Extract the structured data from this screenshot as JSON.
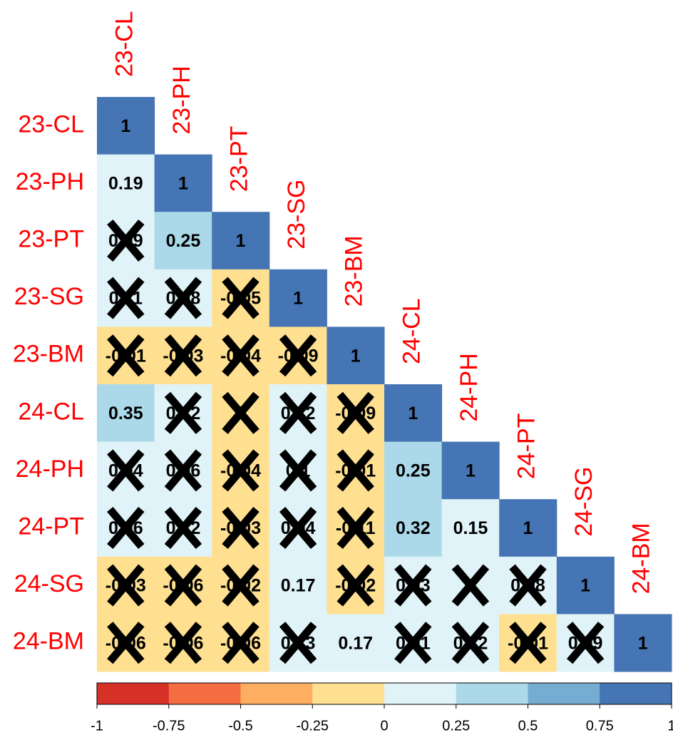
{
  "chart_data": {
    "type": "heatmap",
    "categories": [
      "23-CL",
      "23-PH",
      "23-PT",
      "23-SG",
      "23-BM",
      "24-CL",
      "24-PH",
      "24-PT",
      "24-SG",
      "24-BM"
    ],
    "values": [
      [
        1
      ],
      [
        0.19,
        1
      ],
      [
        0.09,
        0.25,
        1
      ],
      [
        0.11,
        0.08,
        -0.05,
        1
      ],
      [
        -0.01,
        -0.03,
        -0.04,
        -0.09,
        1
      ],
      [
        0.35,
        0.12,
        -0.004,
        0.12,
        -0.09,
        1
      ],
      [
        0.04,
        0.06,
        -0.04,
        0.1,
        -0.01,
        0.25,
        1
      ],
      [
        0.06,
        0.12,
        -0.03,
        0.04,
        -0.11,
        0.32,
        0.15,
        1
      ],
      [
        -0.03,
        -0.06,
        -0.02,
        0.17,
        -0.02,
        0.03,
        0.004,
        0.08,
        1
      ],
      [
        -0.06,
        -0.06,
        -0.06,
        0.13,
        0.17,
        0.01,
        0.12,
        -0.01,
        0.09,
        1
      ]
    ],
    "value_labels": [
      [
        "1"
      ],
      [
        "0.19",
        "1"
      ],
      [
        "0.09",
        "0.25",
        "1"
      ],
      [
        "0.11",
        "0.08",
        "-0.05",
        "1"
      ],
      [
        "-0.01",
        "-0.03",
        "-0.04",
        "-0.09",
        "1"
      ],
      [
        "0.35",
        "0.12",
        "0",
        "0.12",
        "-0.09",
        "1"
      ],
      [
        "0.04",
        "0.06",
        "-0.04",
        "0.1",
        "-0.01",
        "0.25",
        "1"
      ],
      [
        "0.06",
        "0.12",
        "-0.03",
        "0.04",
        "-0.11",
        "0.32",
        "0.15",
        "1"
      ],
      [
        "-0.03",
        "-0.06",
        "-0.02",
        "0.17",
        "-0.02",
        "0.03",
        "0",
        "0.08",
        "1"
      ],
      [
        "-0.06",
        "-0.06",
        "-0.06",
        "0.13",
        "0.17",
        "0.01",
        "0.12",
        "-0.01",
        "0.09",
        "1"
      ]
    ],
    "insignificant": [
      [
        false
      ],
      [
        false,
        false
      ],
      [
        true,
        false,
        false
      ],
      [
        true,
        true,
        true,
        false
      ],
      [
        true,
        true,
        true,
        true,
        false
      ],
      [
        false,
        true,
        true,
        true,
        true,
        false
      ],
      [
        true,
        true,
        true,
        true,
        true,
        false,
        false
      ],
      [
        true,
        true,
        true,
        true,
        true,
        false,
        false,
        false
      ],
      [
        true,
        true,
        true,
        false,
        true,
        true,
        true,
        true,
        false
      ],
      [
        true,
        true,
        true,
        true,
        false,
        true,
        true,
        true,
        true,
        false
      ]
    ],
    "colors": [
      "#d73027",
      "#f46d43",
      "#fdae61",
      "#fee090",
      "#e0f3f8",
      "#abd9e9",
      "#74add1",
      "#4575b4"
    ],
    "clim": [
      -1,
      1
    ],
    "cticks": [
      -1,
      -0.75,
      -0.5,
      -0.25,
      0,
      0.25,
      0.5,
      0.75,
      1
    ]
  }
}
